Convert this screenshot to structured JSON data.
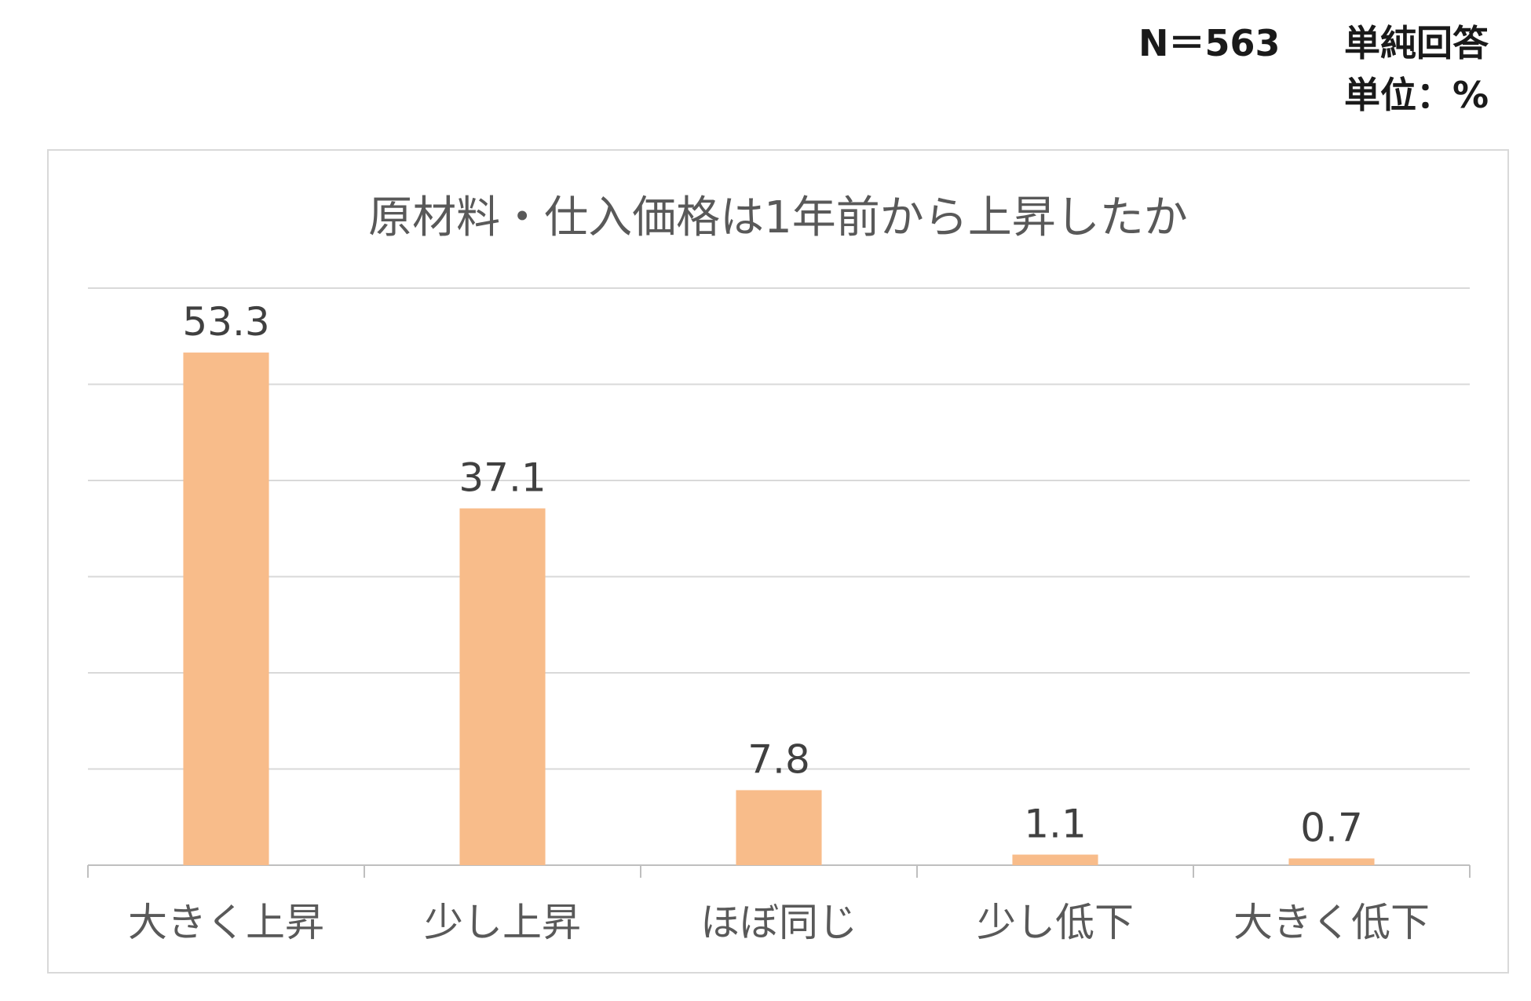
{
  "header": {
    "n_label": "N＝563",
    "answer_type": "単純回答",
    "unit": "単位：%"
  },
  "chart_data": {
    "type": "bar",
    "title": "原材料・仕入価格は1年前から上昇したか",
    "categories": [
      "大きく上昇",
      "少し上昇",
      "ほぼ同じ",
      "少し低下",
      "大きく低下"
    ],
    "values": [
      53.3,
      37.1,
      7.8,
      1.1,
      0.7
    ],
    "value_labels": [
      "53.3",
      "37.1",
      "7.8",
      "1.1",
      "0.7"
    ],
    "ylim": [
      0,
      60
    ],
    "y_gridline_step": 10,
    "grid": true,
    "y_tick_labels_shown": false,
    "legend": "none",
    "bar_color": "#F8BC8A",
    "grid_color": "#d9d9d9",
    "axis_color": "#bfbfbf"
  }
}
